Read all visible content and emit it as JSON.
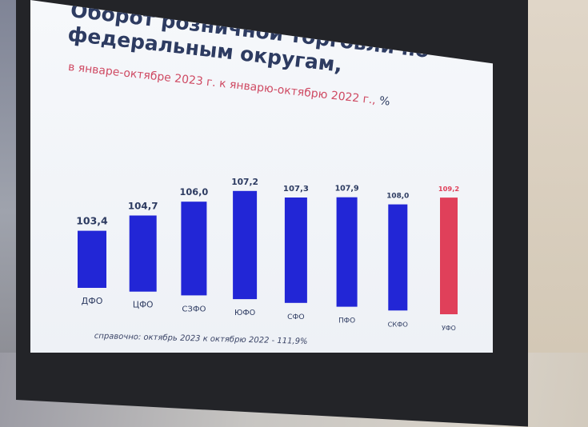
{
  "slide": {
    "title": "Оборот розничной торговли по федеральным округам,",
    "subtitle": "в январе-октябре 2023 г. к январю-октябрю 2022 г.,",
    "subtitle_unit": "%",
    "footnote": "справочно: октябрь 2023 к октябрю 2022 - 111,9%"
  },
  "colors": {
    "bar": "#2226d6",
    "highlight_bar": "#e0405a",
    "title": "#2d3b61",
    "subtitle": "#cf4a63"
  },
  "chart_data": {
    "type": "bar",
    "title": "Оборот розничной торговли по федеральным округам,",
    "subtitle": "в январе-октябре 2023 г. к январю-октябрю 2022 г., %",
    "categories": [
      "ДФО",
      "ЦФО",
      "СЗФО",
      "ЮФО",
      "СФО",
      "ПФО",
      "СКФО",
      "УФО"
    ],
    "values": [
      103.4,
      104.7,
      106.0,
      107.2,
      107.3,
      107.9,
      108.0,
      109.2
    ],
    "value_labels": [
      "103,4",
      "104,7",
      "106,0",
      "107,2",
      "107,3",
      "107,9",
      "108,0",
      "109,2"
    ],
    "highlight_index": 7,
    "grid": false,
    "legend": "none"
  }
}
